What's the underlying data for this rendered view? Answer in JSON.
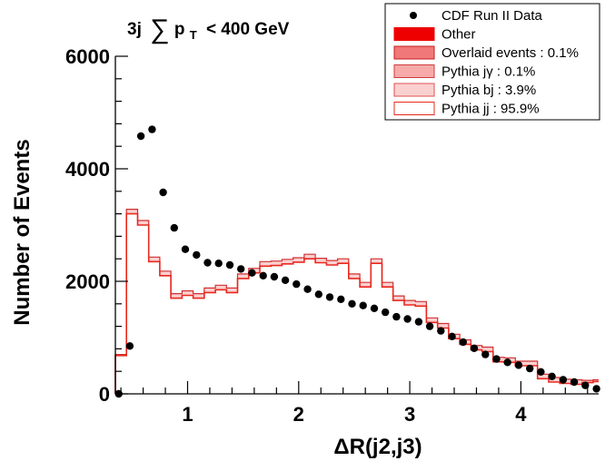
{
  "chart_data": {
    "type": "histogram",
    "title": "",
    "annotation": {
      "prefix": "3j",
      "symbol": "∑",
      "var": "p",
      "sub": "T",
      "suffix": "< 400 GeV"
    },
    "xlabel": "ΔR(j2,j3)",
    "ylabel": "Number of Events",
    "xlim": [
      0.35,
      4.7
    ],
    "ylim": [
      0,
      6000
    ],
    "x_ticks": [
      1,
      2,
      3,
      4
    ],
    "x_tick_labels": [
      "1",
      "2",
      "3",
      "4"
    ],
    "y_ticks": [
      0,
      2000,
      4000,
      6000
    ],
    "y_tick_labels": [
      "0",
      "2000",
      "4000",
      "6000"
    ],
    "bin_edges": [
      0.35,
      0.45,
      0.55,
      0.65,
      0.75,
      0.85,
      0.95,
      1.05,
      1.15,
      1.25,
      1.35,
      1.45,
      1.55,
      1.65,
      1.75,
      1.85,
      1.95,
      2.05,
      2.15,
      2.25,
      2.35,
      2.45,
      2.55,
      2.65,
      2.75,
      2.85,
      2.95,
      3.05,
      3.15,
      3.25,
      3.35,
      3.45,
      3.55,
      3.65,
      3.75,
      3.85,
      3.95,
      4.05,
      4.15,
      4.25,
      4.35,
      4.45,
      4.55,
      4.65,
      4.7
    ],
    "series": [
      {
        "name": "Pythia jj : 95.9%",
        "style": "hist",
        "color": "#e8281e",
        "values": [
          680,
          3200,
          3000,
          2350,
          2100,
          1700,
          1750,
          1700,
          1800,
          1850,
          1800,
          2050,
          2150,
          2270,
          2280,
          2310,
          2340,
          2400,
          2330,
          2290,
          2320,
          2050,
          1900,
          2320,
          1900,
          1660,
          1580,
          1560,
          1270,
          1170,
          980,
          880,
          780,
          750,
          570,
          560,
          500,
          500,
          270,
          210,
          185,
          170,
          200,
          220
        ]
      },
      {
        "name": "Pythia bj : 3.9%",
        "style": "hist",
        "color": "#f5a0a0",
        "values": [
          700,
          3280,
          3080,
          2430,
          2180,
          1780,
          1830,
          1780,
          1880,
          1930,
          1880,
          2130,
          2230,
          2350,
          2360,
          2390,
          2420,
          2480,
          2410,
          2370,
          2400,
          2130,
          1980,
          2400,
          1980,
          1740,
          1660,
          1640,
          1350,
          1250,
          1060,
          960,
          860,
          830,
          650,
          640,
          580,
          580,
          350,
          290,
          260,
          250,
          240,
          250
        ]
      },
      {
        "name": "Pythia jγ : 0.1%",
        "style": "hist",
        "color": "#f29090",
        "values": []
      },
      {
        "name": "Overlaid events : 0.1%",
        "style": "hist",
        "color": "#f07878",
        "values": []
      },
      {
        "name": "Other",
        "style": "hist",
        "color": "#ee0000",
        "values": []
      },
      {
        "name": "CDF Run II Data",
        "style": "points",
        "color": "#000000",
        "x": [
          0.38,
          0.48,
          0.58,
          0.68,
          0.78,
          0.88,
          0.98,
          1.08,
          1.18,
          1.28,
          1.38,
          1.48,
          1.58,
          1.68,
          1.78,
          1.88,
          1.98,
          2.08,
          2.18,
          2.28,
          2.38,
          2.48,
          2.58,
          2.68,
          2.78,
          2.88,
          2.98,
          3.08,
          3.18,
          3.28,
          3.38,
          3.48,
          3.58,
          3.68,
          3.78,
          3.88,
          3.98,
          4.08,
          4.18,
          4.28,
          4.38,
          4.48,
          4.58,
          4.68
        ],
        "values": [
          0,
          850,
          4580,
          4700,
          3580,
          2950,
          2570,
          2470,
          2330,
          2320,
          2290,
          2220,
          2150,
          2100,
          2080,
          2020,
          1950,
          1860,
          1770,
          1720,
          1680,
          1600,
          1570,
          1520,
          1450,
          1370,
          1330,
          1280,
          1200,
          1120,
          1020,
          920,
          810,
          700,
          620,
          560,
          510,
          450,
          390,
          310,
          250,
          210,
          150,
          90
        ]
      }
    ],
    "legend": {
      "position": "top-right",
      "entries": [
        {
          "label": "CDF Run II Data",
          "kind": "marker",
          "color": "#000000"
        },
        {
          "label": "Other",
          "kind": "fill",
          "color": "#ee0000",
          "border": "#ee0000"
        },
        {
          "label": "Overlaid events : 0.1%",
          "kind": "fill",
          "color": "#f07878",
          "border": "#c81e1e"
        },
        {
          "label": "Pythia jγ : 0.1%",
          "kind": "fill",
          "color": "#f6aaaa",
          "border": "#d03c3c"
        },
        {
          "label": "Pythia bj : 3.9%",
          "kind": "fill",
          "color": "#fbd0d0",
          "border": "#e05050"
        },
        {
          "label": "Pythia jj : 95.9%",
          "kind": "fill",
          "color": "#ffffff",
          "border": "#e8281e"
        }
      ]
    }
  }
}
